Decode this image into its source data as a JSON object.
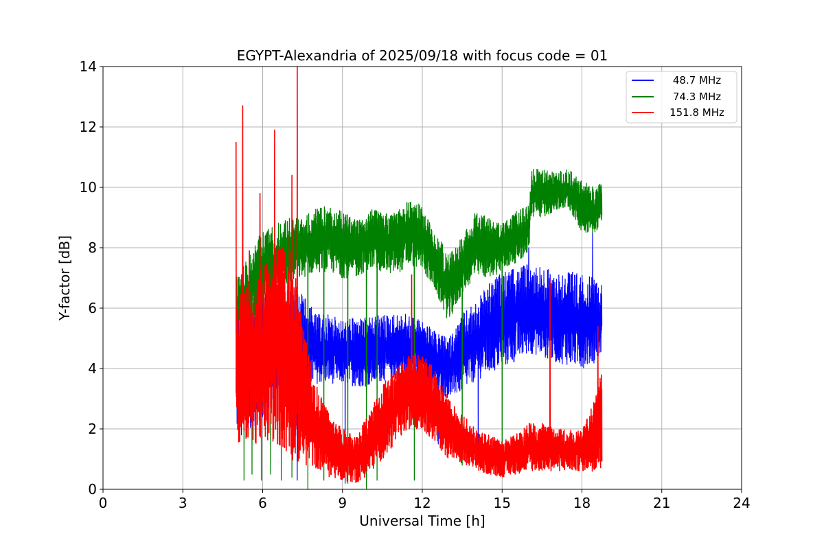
{
  "chart_data": {
    "type": "line",
    "title": "EGYPT-Alexandria of 2025/09/18 with focus code = 01",
    "xlabel": "Universal Time [h]",
    "ylabel": "Y-factor [dB]",
    "xlim": [
      0,
      24
    ],
    "ylim": [
      0,
      14
    ],
    "xticks": [
      "0",
      "3",
      "6",
      "9",
      "12",
      "15",
      "18",
      "21",
      "24"
    ],
    "yticks": [
      "0",
      "2",
      "4",
      "6",
      "8",
      "10",
      "12",
      "14"
    ],
    "grid": true,
    "legend_position": "top-right",
    "series": [
      {
        "name": "48.7 MHz",
        "color": "#0000ff",
        "noise_width": 1.2,
        "x": [
          5.0,
          5.5,
          6.0,
          6.5,
          7.0,
          7.5,
          8.0,
          8.5,
          9.0,
          9.5,
          10.0,
          10.5,
          11.0,
          11.5,
          12.0,
          12.5,
          13.0,
          13.5,
          14.0,
          14.5,
          15.0,
          15.5,
          16.0,
          16.5,
          17.0,
          17.5,
          18.0,
          18.5,
          18.75
        ],
        "low": [
          1.8,
          2.0,
          2.2,
          2.8,
          3.0,
          3.2,
          3.5,
          3.5,
          3.5,
          3.4,
          3.4,
          3.6,
          3.6,
          3.7,
          3.6,
          3.2,
          3.0,
          3.2,
          3.6,
          3.8,
          4.0,
          4.2,
          4.5,
          4.4,
          4.2,
          4.1,
          4.0,
          4.2,
          4.5
        ],
        "high": [
          6.5,
          6.8,
          7.0,
          7.0,
          6.8,
          6.5,
          5.8,
          5.8,
          5.6,
          5.7,
          5.7,
          5.8,
          5.8,
          5.8,
          5.6,
          5.2,
          5.0,
          5.8,
          6.2,
          6.8,
          7.2,
          7.3,
          7.5,
          7.4,
          7.2,
          7.3,
          7.1,
          7.0,
          6.8
        ]
      },
      {
        "name": "74.3 MHz",
        "color": "#008000",
        "noise_width": 1.3,
        "x": [
          5.0,
          5.5,
          6.0,
          6.5,
          7.0,
          7.5,
          8.0,
          8.5,
          9.0,
          9.5,
          10.0,
          10.5,
          11.0,
          11.5,
          12.0,
          12.5,
          13.0,
          13.5,
          14.0,
          14.5,
          15.0,
          15.5,
          16.0,
          16.1,
          16.5,
          17.0,
          17.5,
          18.0,
          18.5,
          18.75
        ],
        "low": [
          5.0,
          5.5,
          6.0,
          6.5,
          6.8,
          7.0,
          7.2,
          7.2,
          7.0,
          7.0,
          7.3,
          7.2,
          7.1,
          7.4,
          7.3,
          6.5,
          5.5,
          6.5,
          7.0,
          7.0,
          7.2,
          7.5,
          7.8,
          9.0,
          9.0,
          9.2,
          9.3,
          8.5,
          8.5,
          8.8
        ],
        "high": [
          7.0,
          7.8,
          8.6,
          8.8,
          9.0,
          9.0,
          9.3,
          9.4,
          9.2,
          9.0,
          9.3,
          9.2,
          9.2,
          9.6,
          9.4,
          8.5,
          7.8,
          8.4,
          9.2,
          9.0,
          8.8,
          9.2,
          9.4,
          10.6,
          10.6,
          10.5,
          10.6,
          10.2,
          10.0,
          10.2
        ]
      },
      {
        "name": "151.8 MHz",
        "color": "#ff0000",
        "noise_width": 1.6,
        "x": [
          5.0,
          5.5,
          6.0,
          6.5,
          7.0,
          7.5,
          8.0,
          8.5,
          9.0,
          9.5,
          10.0,
          10.5,
          11.0,
          11.5,
          12.0,
          12.5,
          13.0,
          13.5,
          14.0,
          14.5,
          15.0,
          15.5,
          16.0,
          16.5,
          17.0,
          17.5,
          18.0,
          18.5,
          18.75
        ],
        "low": [
          1.5,
          1.5,
          1.5,
          1.5,
          1.0,
          0.8,
          0.7,
          0.4,
          0.3,
          0.2,
          0.5,
          1.0,
          1.5,
          2.0,
          2.0,
          1.5,
          1.0,
          0.8,
          0.6,
          0.5,
          0.4,
          0.5,
          0.6,
          0.6,
          0.6,
          0.6,
          0.6,
          0.6,
          0.6
        ],
        "high": [
          6.5,
          7.0,
          7.5,
          8.0,
          8.5,
          5.5,
          3.5,
          2.5,
          2.0,
          1.8,
          2.5,
          3.5,
          4.0,
          4.5,
          4.5,
          4.0,
          3.0,
          2.5,
          2.0,
          1.8,
          1.6,
          1.8,
          2.2,
          2.2,
          2.0,
          2.0,
          2.0,
          3.0,
          4.0
        ]
      }
    ],
    "spikes": [
      {
        "series": "151.8 MHz",
        "x": 5.0,
        "y": 11.5
      },
      {
        "series": "151.8 MHz",
        "x": 5.25,
        "y": 12.7
      },
      {
        "series": "151.8 MHz",
        "x": 5.5,
        "y": 7.9
      },
      {
        "series": "151.8 MHz",
        "x": 5.9,
        "y": 9.8
      },
      {
        "series": "151.8 MHz",
        "x": 6.45,
        "y": 11.9
      },
      {
        "series": "151.8 MHz",
        "x": 7.1,
        "y": 10.4
      },
      {
        "series": "151.8 MHz",
        "x": 7.3,
        "y": 14.0
      },
      {
        "series": "151.8 MHz",
        "x": 11.6,
        "y": 7.1
      },
      {
        "series": "151.8 MHz",
        "x": 16.8,
        "y": 6.9
      },
      {
        "series": "151.8 MHz",
        "x": 18.6,
        "y": 5.4
      },
      {
        "series": "74.3 MHz",
        "x": 6.3,
        "y": 10.4
      },
      {
        "series": "74.3 MHz",
        "x": 6.85,
        "y": 8.9
      },
      {
        "series": "48.7 MHz",
        "x": 16.0,
        "y": 8.0
      },
      {
        "series": "48.7 MHz",
        "x": 18.4,
        "y": 8.5
      }
    ],
    "dips": [
      {
        "series": "74.3 MHz",
        "x": 5.3,
        "y": 0.3
      },
      {
        "series": "74.3 MHz",
        "x": 5.6,
        "y": 0.5
      },
      {
        "series": "74.3 MHz",
        "x": 5.95,
        "y": 0.3
      },
      {
        "series": "74.3 MHz",
        "x": 6.3,
        "y": 0.5
      },
      {
        "series": "74.3 MHz",
        "x": 6.7,
        "y": 0.3
      },
      {
        "series": "74.3 MHz",
        "x": 7.1,
        "y": 0.4
      },
      {
        "series": "74.3 MHz",
        "x": 7.7,
        "y": 0.0
      },
      {
        "series": "74.3 MHz",
        "x": 8.3,
        "y": 0.3
      },
      {
        "series": "74.3 MHz",
        "x": 9.2,
        "y": 0.2
      },
      {
        "series": "74.3 MHz",
        "x": 9.9,
        "y": 0.0
      },
      {
        "series": "74.3 MHz",
        "x": 10.3,
        "y": 0.3
      },
      {
        "series": "74.3 MHz",
        "x": 11.7,
        "y": 0.3
      },
      {
        "series": "74.3 MHz",
        "x": 13.5,
        "y": 0.8
      },
      {
        "series": "74.3 MHz",
        "x": 15.0,
        "y": 0.6
      },
      {
        "series": "48.7 MHz",
        "x": 5.2,
        "y": 1.8
      },
      {
        "series": "48.7 MHz",
        "x": 7.3,
        "y": 0.3
      },
      {
        "series": "48.7 MHz",
        "x": 9.1,
        "y": 0.2
      },
      {
        "series": "48.7 MHz",
        "x": 12.6,
        "y": 1.5
      },
      {
        "series": "48.7 MHz",
        "x": 14.1,
        "y": 1.0
      }
    ]
  }
}
